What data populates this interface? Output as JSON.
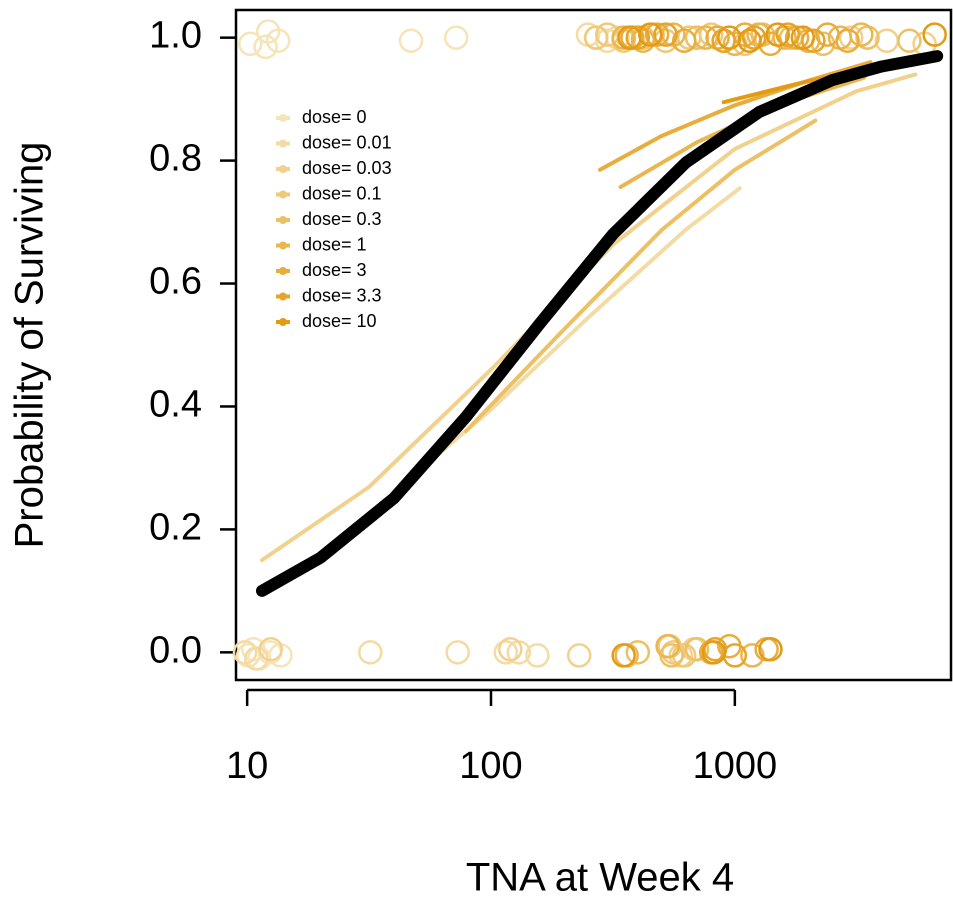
{
  "chart_data": {
    "type": "logistic-scatter",
    "x_label": "TNA at Week 4",
    "y_label": "Probability of Surviving",
    "xscale": "log",
    "xlim": [
      9,
      7700
    ],
    "ylim": [
      -0.045,
      1.045
    ],
    "xticks": [
      10,
      100,
      1000
    ],
    "yticks": [
      {
        "value": 0,
        "label": "0.0"
      },
      {
        "value": 0.2,
        "label": "0.2"
      },
      {
        "value": 0.4,
        "label": "0.4"
      },
      {
        "value": 0.6,
        "label": "0.6"
      },
      {
        "value": 0.8,
        "label": "0.8"
      },
      {
        "value": 1,
        "label": "1.0"
      }
    ],
    "legend": "top-left",
    "overall": {
      "color": "#000000",
      "x": [
        11.5,
        20,
        40,
        79,
        158,
        316,
        631,
        1259,
        2512,
        3981,
        6761
      ],
      "values": [
        0.1,
        0.154,
        0.251,
        0.383,
        0.534,
        0.68,
        0.797,
        0.879,
        0.931,
        0.953,
        0.97
      ]
    },
    "series": [
      {
        "name": "dose= 0",
        "color": "#f6e4b8",
        "x": [],
        "values": [],
        "points_x": [
          10.3,
          11.9,
          12.2,
          13.4,
          47,
          72,
          10.1,
          10.6,
          11.2,
          12.4,
          13.7
        ],
        "points_y": [
          0.99,
          0.985,
          1.01,
          0.995,
          0.995,
          1.0,
          -0.005,
          0.005,
          -0.01,
          0.0,
          -0.005
        ]
      },
      {
        "name": "dose= 0.01",
        "color": "#f4dba3",
        "x": [
          42.7,
          100,
          251,
          631,
          1047
        ],
        "values": [
          0.271,
          0.395,
          0.545,
          0.688,
          0.755
        ],
        "points_x": [
          9.8,
          10.9,
          32,
          73,
          115,
          130,
          155,
          250,
          270,
          300,
          330
        ],
        "points_y": [
          0.0,
          -0.01,
          0.0,
          0.0,
          0.0,
          0.0,
          -0.005,
          1.005,
          1.0,
          0.995,
          1.0
        ]
      },
      {
        "name": "dose= 0.03",
        "color": "#f1d18c",
        "x": [
          11.5,
          31.6,
          100,
          316,
          1000,
          3162,
          5495
        ],
        "values": [
          0.15,
          0.269,
          0.46,
          0.663,
          0.819,
          0.913,
          0.94
        ],
        "points_x": [
          12.5,
          120,
          230,
          600,
          680,
          3000,
          4200,
          6000
        ],
        "points_y": [
          0.005,
          0.005,
          -0.005,
          -0.005,
          0.005,
          1.0,
          0.995,
          0.99
        ]
      },
      {
        "name": "dose= 0.1",
        "color": "#efc978",
        "x": [],
        "values": [],
        "points_x": [
          270,
          300,
          350,
          420,
          520,
          650,
          800,
          1100,
          540,
          560,
          620
        ],
        "points_y": [
          1.0,
          1.005,
          0.995,
          1.0,
          0.995,
          1.0,
          1.005,
          0.99,
          0.01,
          0.0,
          -0.005
        ]
      },
      {
        "name": "dose= 0.3",
        "color": "#edc064",
        "x": [
          79,
          200,
          501,
          1000,
          2138
        ],
        "values": [
          0.36,
          0.526,
          0.687,
          0.785,
          0.865
        ],
        "points_x": [
          380,
          460,
          700,
          900,
          1300,
          1700,
          2300,
          3500,
          5200,
          400,
          550,
          700
        ],
        "points_y": [
          1.0,
          1.005,
          1.0,
          0.995,
          1.005,
          1.0,
          0.99,
          1.0,
          0.995,
          0.0,
          -0.005,
          0.005
        ]
      },
      {
        "name": "dose= 1",
        "color": "#eab650",
        "x": [
          340,
          700,
          1500,
          3400
        ],
        "values": [
          0.757,
          0.83,
          0.89,
          0.935
        ],
        "points_x": [
          350,
          420,
          560,
          760,
          1000,
          1250,
          1600,
          2000,
          2700,
          3300,
          360,
          530,
          1180
        ],
        "points_y": [
          1.0,
          0.995,
          1.005,
          1.0,
          0.99,
          1.005,
          1.0,
          0.995,
          1.0,
          1.005,
          -0.005,
          0.01,
          -0.005
        ]
      },
      {
        "name": "dose= 3",
        "color": "#e8ad3c",
        "x": [
          280,
          500,
          1000,
          2000,
          3600
        ],
        "values": [
          0.785,
          0.84,
          0.89,
          0.93,
          0.96
        ],
        "points_x": [
          380,
          480,
          620,
          850,
          1100,
          1400,
          1800,
          2400,
          2900,
          800,
          950,
          1350
        ],
        "points_y": [
          1.0,
          1.005,
          0.995,
          1.0,
          1.005,
          0.99,
          1.0,
          1.005,
          0.995,
          0.0,
          0.01,
          0.005
        ]
      },
      {
        "name": "dose= 3.3",
        "color": "#e6a428",
        "x": [],
        "values": [],
        "points_x": [
          400,
          520,
          900,
          1200,
          1650,
          2100,
          830,
          1000
        ],
        "points_y": [
          1.0,
          1.005,
          0.995,
          1.0,
          1.005,
          0.995,
          0.005,
          -0.005
        ]
      },
      {
        "name": "dose= 10",
        "color": "#e49b14",
        "x": [
          900,
          1800,
          3500,
          6000
        ],
        "values": [
          0.895,
          0.925,
          0.95,
          0.965
        ],
        "points_x": [
          370,
          450,
          950,
          1150,
          1500,
          1900,
          6600,
          350,
          820,
          1400
        ],
        "points_y": [
          1.0,
          1.005,
          1.0,
          0.995,
          1.005,
          1.0,
          1.005,
          -0.005,
          0.0,
          0.005
        ]
      }
    ]
  }
}
